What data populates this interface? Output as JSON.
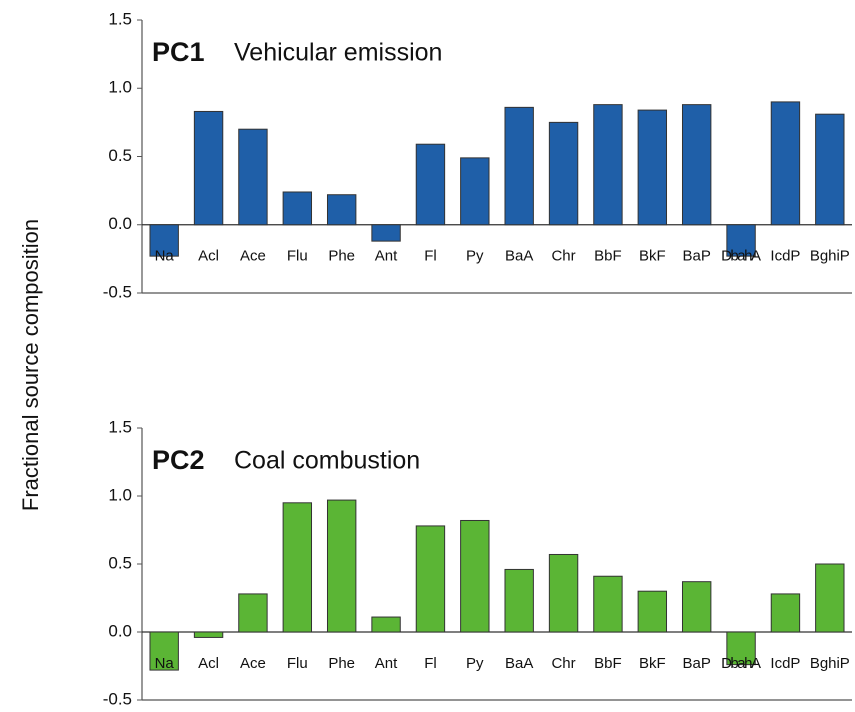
{
  "ylabel": "Fractional source composition",
  "chart_data": [
    {
      "type": "bar",
      "label": "PC1",
      "title": "Vehicular emission",
      "categories": [
        "Na",
        "Acl",
        "Ace",
        "Flu",
        "Phe",
        "Ant",
        "Fl",
        "Py",
        "BaA",
        "Chr",
        "BbF",
        "BkF",
        "BaP",
        "DbahA",
        "IcdP",
        "BghiP"
      ],
      "values": [
        -0.23,
        0.83,
        0.7,
        0.24,
        0.22,
        -0.12,
        0.59,
        0.49,
        0.86,
        0.75,
        0.88,
        0.84,
        0.88,
        -0.23,
        0.9,
        0.81
      ],
      "color": "#1f5fa8",
      "ylim": [
        -0.5,
        1.5
      ],
      "yticks": [
        1.5,
        {
          "value": 1.0,
          "label": "1.0"
        },
        0.5,
        {
          "value": 0.0,
          "label": "0.0"
        },
        -0.5
      ]
    },
    {
      "type": "bar",
      "label": "PC2",
      "title": "Coal combustion",
      "categories": [
        "Na",
        "Acl",
        "Ace",
        "Flu",
        "Phe",
        "Ant",
        "Fl",
        "Py",
        "BaA",
        "Chr",
        "BbF",
        "BkF",
        "BaP",
        "DbahA",
        "IcdP",
        "BghiP"
      ],
      "values": [
        -0.28,
        -0.04,
        0.28,
        0.95,
        0.97,
        0.11,
        0.78,
        0.82,
        0.46,
        0.57,
        0.41,
        0.3,
        0.37,
        -0.24,
        0.28,
        0.5
      ],
      "color": "#5bb535",
      "ylim": [
        -0.5,
        1.5
      ],
      "yticks": [
        1.5,
        {
          "value": 1.0,
          "label": "1.0"
        },
        0.5,
        {
          "value": 0.0,
          "label": "0.0"
        },
        -0.5
      ]
    }
  ]
}
